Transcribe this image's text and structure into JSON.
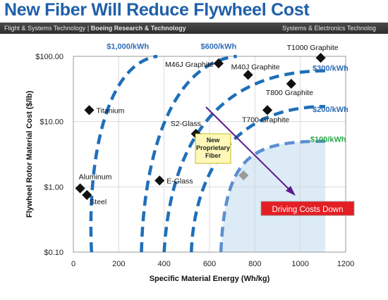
{
  "header": {
    "title": "New Fiber Will Reduce Flywheel Cost",
    "bar_left_plain": "Flight & Systems Technology | ",
    "bar_left_bold": "Boeing Research & Technology",
    "bar_right": "Systems & Electronics Technolog"
  },
  "chart_data": {
    "type": "scatter",
    "xlabel": "Specific Material Energy (Wh/kg)",
    "ylabel": "Flywheel Rotor Material  Cost ($/lb)",
    "xlim": [
      0,
      1200
    ],
    "ylim": [
      0.1,
      100
    ],
    "y_scale": "log",
    "grid": true,
    "x_ticks": [
      "0",
      "200",
      "400",
      "600",
      "800",
      "1000",
      "1200"
    ],
    "y_ticks": [
      "$0.10",
      "$1.00",
      "$10.00",
      "$100.00"
    ],
    "points": [
      {
        "name": "T1000 Graphite",
        "x": 1090,
        "y": 95
      },
      {
        "name": "M46J Graphite",
        "x": 640,
        "y": 78
      },
      {
        "name": "M40J Graphite",
        "x": 770,
        "y": 52
      },
      {
        "name": "T800 Graphite",
        "x": 960,
        "y": 38
      },
      {
        "name": "Titanium",
        "x": 70,
        "y": 15
      },
      {
        "name": "T700 Graphite",
        "x": 855,
        "y": 15
      },
      {
        "name": "S2-Glass",
        "x": 540,
        "y": 6.5
      },
      {
        "name": "Aluminum",
        "x": 30,
        "y": 0.95
      },
      {
        "name": "Steel",
        "x": 60,
        "y": 0.75
      },
      {
        "name": "E-Glass",
        "x": 380,
        "y": 1.25
      }
    ],
    "new_fiber_point": {
      "name": "New Proprietary Fiber",
      "x": 750,
      "y": 1.5
    },
    "cost_curves": [
      {
        "name": "$1,000/kWh"
      },
      {
        "name": "$600/kWh"
      },
      {
        "name": "$300/kWh"
      },
      {
        "name": "$200/kWh"
      },
      {
        "name": "$100/kWh"
      }
    ],
    "callout_label": "Driving Costs Down",
    "colors": {
      "curve": "#1f6fb8",
      "curve_new": "#5b8fd0",
      "label_blue": "#2f6db5",
      "label_green": "#2aa84a",
      "arrow": "#5a1a8c",
      "callout_bg": "#e31e24",
      "fiber_box": "#fff8b8",
      "shade": "#dcebf6"
    }
  }
}
